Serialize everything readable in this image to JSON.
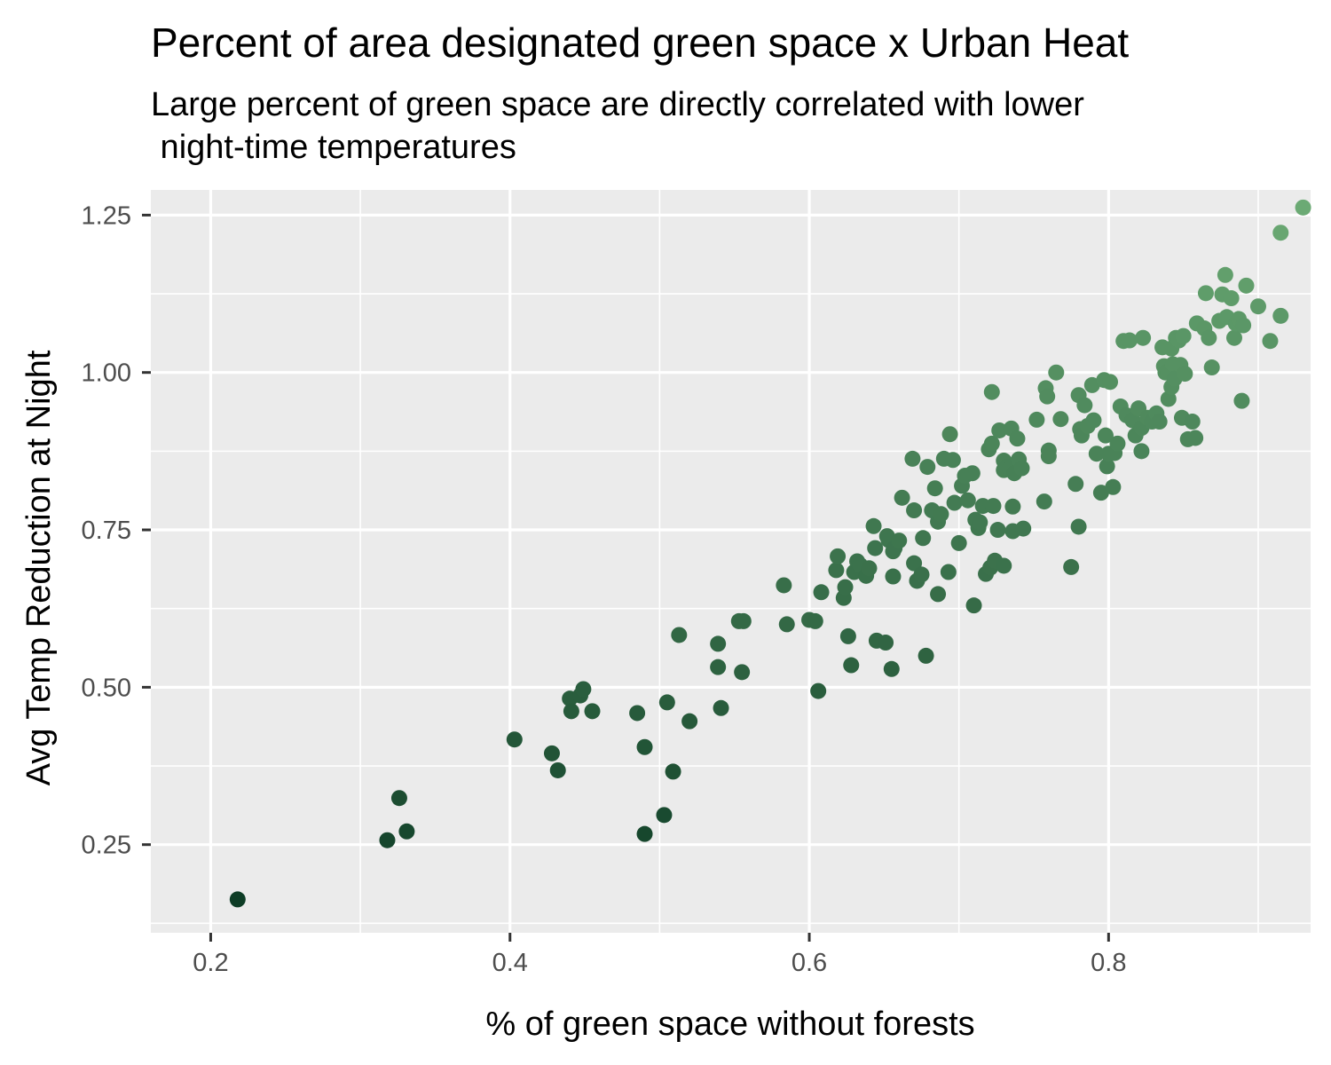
{
  "chart_data": {
    "type": "scatter",
    "title": "Percent of area designated green space x Urban Heat",
    "subtitle_lines": [
      "Large percent of green space are directly correlated with lower",
      " night-time temperatures"
    ],
    "xlabel": "% of green space without forests",
    "ylabel": "Avg Temp Reduction at Night",
    "xlim": [
      0.16,
      0.935
    ],
    "ylim": [
      0.11,
      1.29
    ],
    "x_ticks": [
      0.2,
      0.4,
      0.6,
      0.8
    ],
    "x_tick_labels": [
      "0.2",
      "0.4",
      "0.6",
      "0.8"
    ],
    "y_ticks": [
      0.25,
      0.5,
      0.75,
      1.0,
      1.25
    ],
    "y_tick_labels": [
      "0.25",
      "0.50",
      "0.75",
      "1.00",
      "1.25"
    ],
    "grid": true,
    "panel_background": "#EBEBEB",
    "grid_color": "#FFFFFF",
    "color_low": "#0E3D26",
    "color_high": "#6BAA74",
    "points": [
      [
        0.218,
        0.163
      ],
      [
        0.318,
        0.257
      ],
      [
        0.326,
        0.324
      ],
      [
        0.331,
        0.271
      ],
      [
        0.403,
        0.417
      ],
      [
        0.428,
        0.395
      ],
      [
        0.432,
        0.368
      ],
      [
        0.44,
        0.482
      ],
      [
        0.441,
        0.462
      ],
      [
        0.447,
        0.487
      ],
      [
        0.449,
        0.497
      ],
      [
        0.455,
        0.462
      ],
      [
        0.485,
        0.459
      ],
      [
        0.49,
        0.267
      ],
      [
        0.49,
        0.405
      ],
      [
        0.503,
        0.297
      ],
      [
        0.505,
        0.476
      ],
      [
        0.509,
        0.366
      ],
      [
        0.513,
        0.583
      ],
      [
        0.52,
        0.446
      ],
      [
        0.539,
        0.569
      ],
      [
        0.539,
        0.532
      ],
      [
        0.541,
        0.467
      ],
      [
        0.553,
        0.605
      ],
      [
        0.555,
        0.524
      ],
      [
        0.556,
        0.605
      ],
      [
        0.583,
        0.662
      ],
      [
        0.585,
        0.6
      ],
      [
        0.6,
        0.607
      ],
      [
        0.604,
        0.605
      ],
      [
        0.606,
        0.494
      ],
      [
        0.608,
        0.651
      ],
      [
        0.618,
        0.686
      ],
      [
        0.619,
        0.708
      ],
      [
        0.623,
        0.642
      ],
      [
        0.624,
        0.659
      ],
      [
        0.626,
        0.581
      ],
      [
        0.628,
        0.535
      ],
      [
        0.63,
        0.683
      ],
      [
        0.632,
        0.7
      ],
      [
        0.634,
        0.694
      ],
      [
        0.638,
        0.677
      ],
      [
        0.64,
        0.689
      ],
      [
        0.643,
        0.756
      ],
      [
        0.644,
        0.721
      ],
      [
        0.645,
        0.574
      ],
      [
        0.651,
        0.571
      ],
      [
        0.652,
        0.74
      ],
      [
        0.653,
        0.734
      ],
      [
        0.655,
        0.529
      ],
      [
        0.656,
        0.716
      ],
      [
        0.656,
        0.676
      ],
      [
        0.657,
        0.721
      ],
      [
        0.66,
        0.733
      ],
      [
        0.662,
        0.801
      ],
      [
        0.669,
        0.863
      ],
      [
        0.67,
        0.781
      ],
      [
        0.67,
        0.697
      ],
      [
        0.672,
        0.669
      ],
      [
        0.675,
        0.679
      ],
      [
        0.676,
        0.737
      ],
      [
        0.678,
        0.55
      ],
      [
        0.679,
        0.85
      ],
      [
        0.682,
        0.781
      ],
      [
        0.684,
        0.816
      ],
      [
        0.686,
        0.648
      ],
      [
        0.686,
        0.763
      ],
      [
        0.688,
        0.775
      ],
      [
        0.69,
        0.863
      ],
      [
        0.693,
        0.683
      ],
      [
        0.694,
        0.902
      ],
      [
        0.696,
        0.861
      ],
      [
        0.697,
        0.793
      ],
      [
        0.7,
        0.729
      ],
      [
        0.702,
        0.82
      ],
      [
        0.704,
        0.836
      ],
      [
        0.706,
        0.797
      ],
      [
        0.709,
        0.84
      ],
      [
        0.71,
        0.63
      ],
      [
        0.711,
        0.766
      ],
      [
        0.713,
        0.753
      ],
      [
        0.714,
        0.762
      ],
      [
        0.716,
        0.788
      ],
      [
        0.718,
        0.68
      ],
      [
        0.72,
        0.878
      ],
      [
        0.721,
        0.69
      ],
      [
        0.722,
        0.887
      ],
      [
        0.722,
        0.969
      ],
      [
        0.723,
        0.788
      ],
      [
        0.724,
        0.701
      ],
      [
        0.726,
        0.75
      ],
      [
        0.727,
        0.908
      ],
      [
        0.73,
        0.693
      ],
      [
        0.73,
        0.86
      ],
      [
        0.73,
        0.845
      ],
      [
        0.732,
        0.85
      ],
      [
        0.734,
        0.847
      ],
      [
        0.735,
        0.911
      ],
      [
        0.736,
        0.787
      ],
      [
        0.736,
        0.748
      ],
      [
        0.737,
        0.84
      ],
      [
        0.739,
        0.895
      ],
      [
        0.74,
        0.862
      ],
      [
        0.742,
        0.848
      ],
      [
        0.743,
        0.752
      ],
      [
        0.752,
        0.925
      ],
      [
        0.757,
        0.795
      ],
      [
        0.758,
        0.975
      ],
      [
        0.759,
        0.962
      ],
      [
        0.76,
        0.876
      ],
      [
        0.76,
        0.867
      ],
      [
        0.765,
        1.0
      ],
      [
        0.768,
        0.926
      ],
      [
        0.775,
        0.691
      ],
      [
        0.778,
        0.823
      ],
      [
        0.78,
        0.755
      ],
      [
        0.78,
        0.964
      ],
      [
        0.781,
        0.91
      ],
      [
        0.782,
        0.9
      ],
      [
        0.784,
        0.948
      ],
      [
        0.786,
        0.915
      ],
      [
        0.789,
        0.98
      ],
      [
        0.79,
        0.924
      ],
      [
        0.792,
        0.871
      ],
      [
        0.795,
        0.809
      ],
      [
        0.797,
        0.988
      ],
      [
        0.798,
        0.9
      ],
      [
        0.799,
        0.851
      ],
      [
        0.8,
        0.871
      ],
      [
        0.801,
        0.985
      ],
      [
        0.803,
        0.818
      ],
      [
        0.804,
        0.872
      ],
      [
        0.806,
        0.887
      ],
      [
        0.808,
        0.946
      ],
      [
        0.81,
        1.05
      ],
      [
        0.812,
        0.932
      ],
      [
        0.814,
        1.051
      ],
      [
        0.816,
        0.924
      ],
      [
        0.818,
        0.9
      ],
      [
        0.82,
        0.943
      ],
      [
        0.822,
        0.875
      ],
      [
        0.822,
        0.912
      ],
      [
        0.823,
        1.055
      ],
      [
        0.826,
        0.928
      ],
      [
        0.829,
        0.922
      ],
      [
        0.832,
        0.935
      ],
      [
        0.834,
        0.922
      ],
      [
        0.836,
        1.04
      ],
      [
        0.837,
        1.01
      ],
      [
        0.838,
        1.0
      ],
      [
        0.84,
        0.958
      ],
      [
        0.84,
        1.0
      ],
      [
        0.842,
        1.038
      ],
      [
        0.842,
        0.977
      ],
      [
        0.843,
        1.013
      ],
      [
        0.844,
        0.99
      ],
      [
        0.845,
        1.055
      ],
      [
        0.847,
        1.051
      ],
      [
        0.848,
        1.012
      ],
      [
        0.849,
        0.928
      ],
      [
        0.85,
        1.058
      ],
      [
        0.851,
        0.998
      ],
      [
        0.853,
        0.894
      ],
      [
        0.856,
        0.922
      ],
      [
        0.858,
        0.896
      ],
      [
        0.859,
        1.078
      ],
      [
        0.864,
        1.07
      ],
      [
        0.865,
        1.126
      ],
      [
        0.867,
        1.055
      ],
      [
        0.869,
        1.008
      ],
      [
        0.874,
        1.082
      ],
      [
        0.876,
        1.124
      ],
      [
        0.878,
        1.155
      ],
      [
        0.879,
        1.088
      ],
      [
        0.882,
        1.118
      ],
      [
        0.884,
        1.055
      ],
      [
        0.885,
        1.078
      ],
      [
        0.887,
        1.085
      ],
      [
        0.889,
        0.955
      ],
      [
        0.89,
        1.075
      ],
      [
        0.892,
        1.138
      ],
      [
        0.9,
        1.105
      ],
      [
        0.908,
        1.05
      ],
      [
        0.915,
        1.09
      ],
      [
        0.915,
        1.222
      ],
      [
        0.93,
        1.262
      ]
    ]
  }
}
